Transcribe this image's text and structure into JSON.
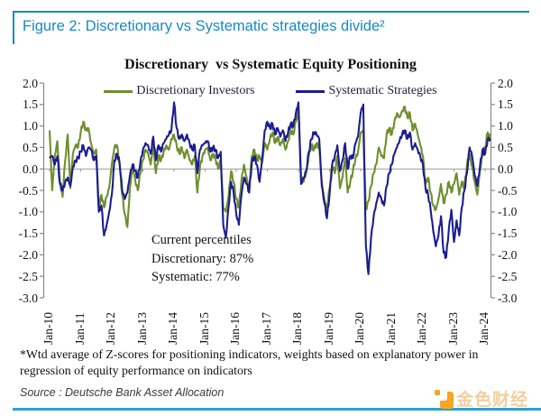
{
  "figure_header": {
    "title": "Figure 2: Discretionary vs Systematic strategies divide²"
  },
  "chart_data": {
    "type": "line",
    "title": "Discretionary  vs Systematic Equity Positioning",
    "legend_position": "top",
    "grid": "zero-line-only",
    "ylim": [
      -3.0,
      2.0
    ],
    "y_tick_step": 0.5,
    "y_ticks": [
      "2.0",
      "1.5",
      "1.0",
      "0.5",
      "0.0",
      "-0.5",
      "-1.0",
      "-1.5",
      "-2.0",
      "-2.5",
      "-3.0"
    ],
    "x_tick_labels": [
      "Jan-10",
      "Jan-11",
      "Jan-12",
      "Jan-13",
      "Jan-14",
      "Jan-15",
      "Jan-16",
      "Jan-17",
      "Jan-18",
      "Jan-19",
      "Jan-20",
      "Jan-21",
      "Jan-22",
      "Jan-23",
      "Jan-24"
    ],
    "x_resolution": "monthly",
    "x_start": "Jan-10",
    "series": [
      {
        "name": "Discretionary Investors",
        "color": "#6f8f2e",
        "values": [
          0.9,
          -0.5,
          0.3,
          0.65,
          -0.3,
          -0.65,
          0.2,
          0.8,
          -0.45,
          0.35,
          0.55,
          0.5,
          0.85,
          1.1,
          0.9,
          0.95,
          0.6,
          0.35,
          0.45,
          -0.95,
          -0.6,
          -0.9,
          -0.65,
          -0.45,
          0.1,
          0.5,
          0.55,
          0.1,
          -0.6,
          -1.05,
          -1.35,
          -0.45,
          0.05,
          -0.25,
          -0.5,
          -0.1,
          0.2,
          0.45,
          0.35,
          0.1,
          0.5,
          -0.1,
          0.3,
          0.2,
          0.4,
          0.55,
          0.45,
          0.7,
          0.8,
          0.55,
          0.35,
          0.5,
          0.25,
          0.45,
          0.2,
          0.1,
          0.3,
          -0.55,
          0.05,
          0.3,
          0.45,
          0.5,
          0.2,
          0.35,
          0.25,
          0.0,
          0.2,
          -0.9,
          -1.0,
          -0.65,
          -0.05,
          -0.3,
          -0.7,
          -0.9,
          -0.25,
          0.1,
          -0.2,
          -0.45,
          0.3,
          0.45,
          0.2,
          0.3,
          0.15,
          0.6,
          0.45,
          0.7,
          0.85,
          0.6,
          0.75,
          0.55,
          0.7,
          0.45,
          0.65,
          0.9,
          0.8,
          1.1,
          1.4,
          -0.15,
          -0.3,
          -0.1,
          0.3,
          0.55,
          0.45,
          0.6,
          0.5,
          -0.3,
          -0.7,
          -0.9,
          -0.45,
          0.1,
          -0.1,
          0.3,
          -0.45,
          -0.2,
          0.25,
          -0.55,
          -0.3,
          -0.05,
          0.25,
          0.4,
          0.85,
          0.9,
          -0.95,
          -0.75,
          -0.4,
          -0.1,
          0.1,
          0.5,
          0.3,
          0.25,
          0.8,
          0.95,
          0.8,
          1.1,
          1.3,
          1.2,
          1.35,
          1.45,
          1.2,
          1.3,
          0.9,
          1.05,
          0.8,
          0.55,
          0.3,
          -0.35,
          -0.2,
          -0.55,
          -0.85,
          -0.95,
          -0.7,
          -0.35,
          -0.8,
          -0.6,
          -0.3,
          -0.55,
          -0.35,
          -0.1,
          -0.6,
          -0.3,
          -0.45,
          0.1,
          0.35,
          0.05,
          -0.3,
          -0.6,
          -0.05,
          0.35,
          0.5,
          0.85,
          0.7
        ]
      },
      {
        "name": "Systematic Strategies",
        "color": "#1c1d8f",
        "values": [
          0.25,
          0.3,
          0.1,
          0.3,
          -0.35,
          -0.5,
          -0.3,
          -0.2,
          -0.4,
          0.05,
          0.2,
          0.25,
          0.4,
          0.55,
          0.3,
          0.5,
          0.45,
          0.2,
          0.3,
          -1.0,
          -0.85,
          -1.55,
          -1.3,
          -1.0,
          -0.6,
          0.2,
          0.35,
          0.15,
          -0.5,
          -0.7,
          -0.55,
          -0.15,
          0.1,
          -0.05,
          -0.2,
          0.15,
          0.45,
          0.6,
          0.55,
          0.35,
          0.75,
          0.2,
          0.55,
          0.4,
          0.6,
          0.7,
          0.8,
          0.9,
          1.55,
          0.95,
          0.7,
          0.8,
          0.65,
          0.8,
          0.6,
          0.45,
          0.55,
          -0.1,
          0.45,
          0.55,
          0.6,
          0.65,
          0.4,
          0.5,
          0.45,
          0.25,
          0.4,
          -1.3,
          -1.6,
          -0.9,
          -0.3,
          -0.55,
          -1.05,
          -1.3,
          -0.6,
          -0.2,
          -0.35,
          -0.55,
          0.15,
          0.3,
          0.1,
          -0.3,
          0.25,
          0.9,
          1.1,
          0.95,
          1.05,
          0.8,
          0.95,
          0.75,
          0.9,
          0.65,
          0.85,
          1.05,
          1.0,
          1.3,
          1.55,
          -0.35,
          -0.2,
          -0.05,
          0.4,
          0.7,
          0.85,
          0.8,
          0.7,
          -0.4,
          -0.8,
          -1.15,
          -0.6,
          0.1,
          0.3,
          0.55,
          -0.05,
          0.2,
          0.6,
          0.0,
          0.3,
          0.25,
          0.6,
          0.75,
          1.3,
          1.5,
          -1.8,
          -2.45,
          -1.6,
          -1.1,
          -0.8,
          -0.55,
          -0.7,
          -0.85,
          -0.4,
          -0.1,
          0.1,
          0.35,
          0.5,
          0.65,
          0.8,
          0.9,
          0.7,
          0.85,
          0.45,
          0.6,
          0.45,
          0.3,
          0.1,
          -0.45,
          -0.6,
          -0.95,
          -1.45,
          -1.8,
          -1.55,
          -1.1,
          -1.95,
          -2.05,
          -1.4,
          -0.95,
          -1.7,
          -1.2,
          -1.55,
          -0.9,
          -0.5,
          -0.1,
          0.5,
          0.3,
          -0.15,
          -0.4,
          0.05,
          0.45,
          0.35,
          0.7,
          0.7
        ]
      }
    ],
    "annotation": {
      "line1": "Current percentiles",
      "line2": "Discretionary: 87%",
      "line3": "Systematic: 77%"
    }
  },
  "footnote": "*Wtd average of Z-scores for positioning indicators, weights based on explanatory power in regression of equity performance on indicators",
  "source": "Source : Deutsche Bank Asset Allocation",
  "logo": {
    "text": "金色财经",
    "accent_color": "#f5a623"
  },
  "colors": {
    "header_blue": "#1789c6",
    "bottom_line_blue": "#2d9fd8",
    "discretionary_green": "#6f8f2e",
    "systematic_navy": "#1c1d8f",
    "axis_gray": "#888888"
  }
}
